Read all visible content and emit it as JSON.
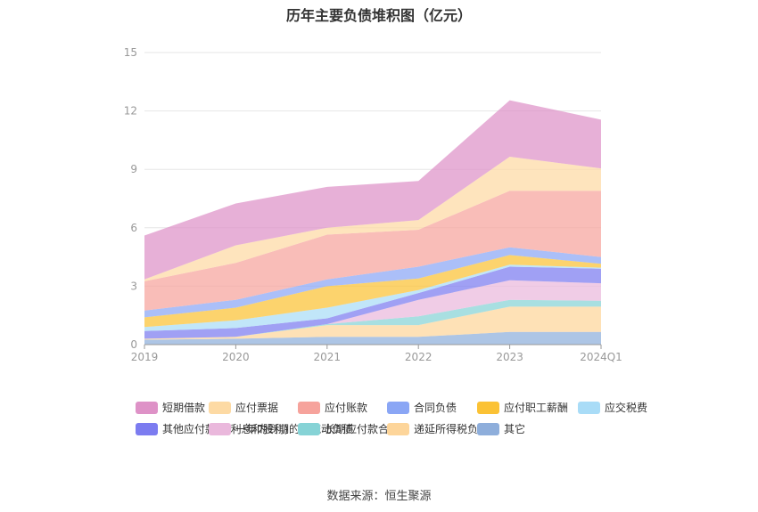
{
  "title": "历年主要负债堆积图（亿元）",
  "source": "数据来源：恒生聚源",
  "chart_data": {
    "type": "area",
    "stacked": true,
    "x": [
      "2019",
      "2020",
      "2021",
      "2022",
      "2023",
      "2024Q1"
    ],
    "ylim": [
      0,
      15
    ],
    "yticks": [
      0,
      3,
      6,
      9,
      12,
      15
    ],
    "grid": true,
    "legend_position": "bottom",
    "series": [
      {
        "name": "其它",
        "color": "#8eaedb",
        "values": [
          0.25,
          0.3,
          0.4,
          0.4,
          0.65,
          0.65
        ]
      },
      {
        "name": "递延所得税负债",
        "color": "#fdd59a",
        "values": [
          0.05,
          0.1,
          0.6,
          0.6,
          1.3,
          1.3
        ]
      },
      {
        "name": "长期应付款合计",
        "color": "#86d3d6",
        "values": [
          0.0,
          0.0,
          0.05,
          0.45,
          0.35,
          0.3
        ]
      },
      {
        "name": "一年内到期的非流动负债",
        "color": "#eab8dc",
        "values": [
          0.0,
          0.0,
          0.0,
          0.85,
          1.0,
          0.9
        ]
      },
      {
        "name": "其他应付款(含利息和股利)",
        "color": "#7c7cf0",
        "values": [
          0.4,
          0.45,
          0.3,
          0.35,
          0.7,
          0.75
        ]
      },
      {
        "name": "应交税费",
        "color": "#a9dcf7",
        "values": [
          0.2,
          0.4,
          0.55,
          0.15,
          0.1,
          0.05
        ]
      },
      {
        "name": "应付职工薪酬",
        "color": "#fbc235",
        "values": [
          0.5,
          0.65,
          1.1,
          0.6,
          0.5,
          0.2
        ]
      },
      {
        "name": "合同负债",
        "color": "#8aa6f5",
        "values": [
          0.35,
          0.4,
          0.35,
          0.6,
          0.4,
          0.35
        ]
      },
      {
        "name": "应付账款",
        "color": "#f6a39c",
        "values": [
          1.5,
          1.9,
          2.3,
          1.9,
          2.9,
          3.4
        ]
      },
      {
        "name": "应付票据",
        "color": "#fddaa4",
        "values": [
          0.1,
          0.9,
          0.35,
          0.5,
          1.75,
          1.15
        ]
      },
      {
        "name": "短期借款",
        "color": "#de92c7",
        "values": [
          2.25,
          2.15,
          2.1,
          2.0,
          2.9,
          2.5
        ]
      }
    ],
    "legend_order": [
      "短期借款",
      "应付票据",
      "应付账款",
      "合同负债",
      "应付职工薪酬",
      "应交税费",
      "其他应付款(含利息和股利)",
      "一年内到期的非流动负债",
      "长期应付款合计",
      "递延所得税负债",
      "其它"
    ]
  }
}
